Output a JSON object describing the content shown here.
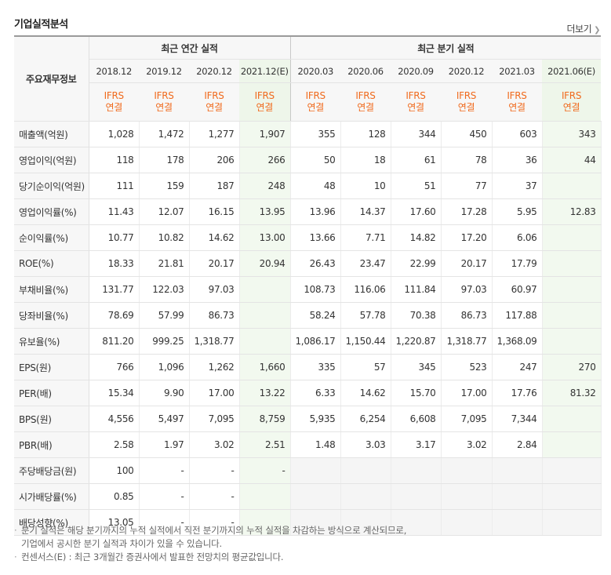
{
  "section": {
    "title": "기업실적분석",
    "more_label": "더보기"
  },
  "header": {
    "corner": "주요재무정보",
    "annual_group": "최근 연간 실적",
    "quarter_group": "최근 분기 실적",
    "periods": [
      "2018.12",
      "2019.12",
      "2020.12",
      "2021.12(E)",
      "2020.03",
      "2020.06",
      "2020.09",
      "2020.12",
      "2021.03",
      "2021.06(E)"
    ],
    "ifrs_top": "IFRS",
    "ifrs_bottom": "연결"
  },
  "rows": [
    {
      "label": "매출액(억원)",
      "values": [
        "1,028",
        "1,472",
        "1,277",
        "1,907",
        "355",
        "128",
        "344",
        "450",
        "603",
        "343"
      ]
    },
    {
      "label": "영업이익(억원)",
      "values": [
        "118",
        "178",
        "206",
        "266",
        "50",
        "18",
        "61",
        "78",
        "36",
        "44"
      ]
    },
    {
      "label": "당기순이익(억원)",
      "values": [
        "111",
        "159",
        "187",
        "248",
        "48",
        "10",
        "51",
        "77",
        "37",
        ""
      ]
    },
    {
      "label": "영업이익률(%)",
      "values": [
        "11.43",
        "12.07",
        "16.15",
        "13.95",
        "13.96",
        "14.37",
        "17.60",
        "17.28",
        "5.95",
        "12.83"
      ]
    },
    {
      "label": "순이익률(%)",
      "values": [
        "10.77",
        "10.82",
        "14.62",
        "13.00",
        "13.66",
        "7.71",
        "14.82",
        "17.20",
        "6.06",
        ""
      ]
    },
    {
      "label": "ROE(%)",
      "values": [
        "18.33",
        "21.81",
        "20.17",
        "20.94",
        "26.43",
        "23.47",
        "22.99",
        "20.17",
        "17.79",
        ""
      ]
    },
    {
      "label": "부채비율(%)",
      "values": [
        "131.77",
        "122.03",
        "97.03",
        "",
        "108.73",
        "116.06",
        "111.84",
        "97.03",
        "60.97",
        ""
      ]
    },
    {
      "label": "당좌비율(%)",
      "values": [
        "78.69",
        "57.99",
        "86.73",
        "",
        "58.24",
        "57.78",
        "70.38",
        "86.73",
        "117.88",
        ""
      ]
    },
    {
      "label": "유보율(%)",
      "values": [
        "811.20",
        "999.25",
        "1,318.77",
        "",
        "1,086.17",
        "1,150.44",
        "1,220.87",
        "1,318.77",
        "1,368.09",
        ""
      ]
    },
    {
      "label": "EPS(원)",
      "values": [
        "766",
        "1,096",
        "1,262",
        "1,660",
        "335",
        "57",
        "345",
        "523",
        "247",
        "270"
      ]
    },
    {
      "label": "PER(배)",
      "values": [
        "15.34",
        "9.90",
        "17.00",
        "13.22",
        "6.33",
        "14.62",
        "15.70",
        "17.00",
        "17.76",
        "81.32"
      ]
    },
    {
      "label": "BPS(원)",
      "values": [
        "4,556",
        "5,497",
        "7,095",
        "8,759",
        "5,935",
        "6,254",
        "6,608",
        "7,095",
        "7,344",
        ""
      ]
    },
    {
      "label": "PBR(배)",
      "values": [
        "2.58",
        "1.97",
        "3.02",
        "2.51",
        "1.48",
        "3.03",
        "3.17",
        "3.02",
        "2.84",
        ""
      ]
    },
    {
      "label": "주당배당금(원)",
      "values": [
        "100",
        "-",
        "-",
        "-",
        "",
        "",
        "",
        "",
        "",
        ""
      ]
    },
    {
      "label": "시가배당률(%)",
      "values": [
        "0.85",
        "-",
        "-",
        "",
        "",
        "",
        "",
        "",
        "",
        ""
      ]
    },
    {
      "label": "배당성향(%)",
      "values": [
        "13.05",
        "-",
        "-",
        "",
        "",
        "",
        "",
        "",
        "",
        ""
      ]
    }
  ],
  "notes": [
    "분기 실적은 해당 분기까지의 누적 실적에서 직전 분기까지의 누적 실적을 차감하는 방식으로 계산되므로,",
    "기업에서 공시한 분기 실적과 차이가 있을 수 있습니다.",
    "컨센서스(E) : 최근 3개월간 증권사에서 발표한 전망치의 평균값입니다."
  ]
}
